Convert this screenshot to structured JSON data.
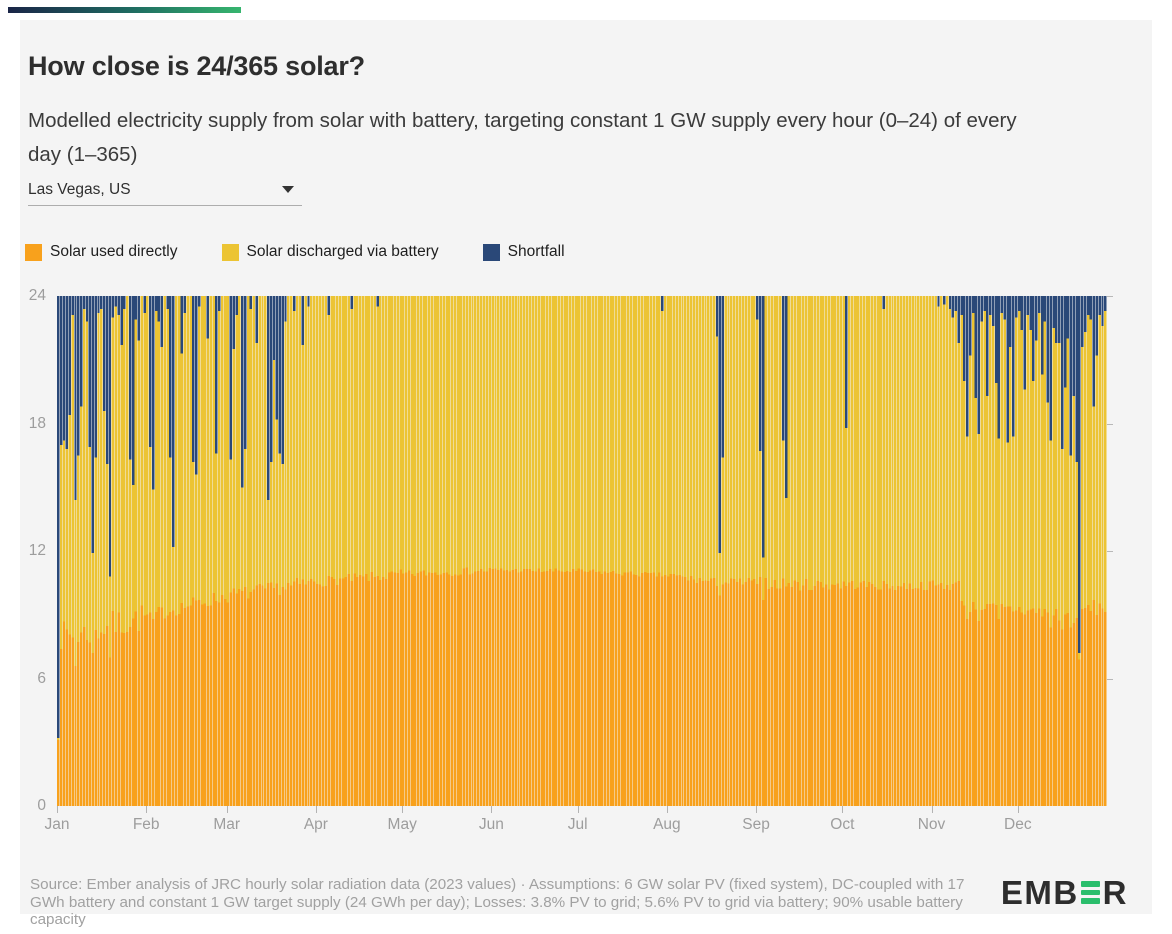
{
  "header": {
    "title": "How close is 24/365 solar?",
    "subtitle": "Modelled electricity supply from solar with battery, targeting constant 1 GW supply every hour (0–24) of every day (1–365)"
  },
  "location_select": {
    "value": "Las Vegas, US"
  },
  "legend": [
    {
      "label": "Solar used directly",
      "color": "#F8A11C"
    },
    {
      "label": "Solar discharged via battery",
      "color": "#ECC433"
    },
    {
      "label": "Shortfall",
      "color": "#2A4878"
    }
  ],
  "footer": {
    "source": "Source: Ember analysis of JRC hourly solar radiation data (2023 values) · Assumptions: 6 GW solar PV (fixed system), DC-coupled with 17 GWh battery and constant 1 GW target supply (24 GWh per day); Losses: 3.8% PV to grid; 5.6% PV to grid via battery; 90% usable battery capacity",
    "logo_pre": "EMB",
    "logo_post": "R"
  },
  "chart_data": {
    "type": "bar",
    "stacked": true,
    "days": 365,
    "target_supply_per_day_gwh": 24,
    "ylim": [
      0,
      24
    ],
    "yticks": [
      0,
      6,
      12,
      18,
      24
    ],
    "x_tick_labels": [
      "Jan",
      "Feb",
      "Mar",
      "Apr",
      "May",
      "Jun",
      "Jul",
      "Aug",
      "Sep",
      "Oct",
      "Nov",
      "Dec"
    ],
    "month_start_days": [
      1,
      32,
      60,
      91,
      121,
      152,
      182,
      213,
      244,
      274,
      305,
      335
    ],
    "series": [
      {
        "name": "Solar used directly",
        "color": "#F8A11C"
      },
      {
        "name": "Solar discharged via battery",
        "color": "#ECC433"
      },
      {
        "name": "Shortfall",
        "color": "#2A4878"
      }
    ],
    "direct_supply_anchors": [
      [
        1,
        8.0
      ],
      [
        10,
        8.1
      ],
      [
        20,
        8.5
      ],
      [
        31,
        8.9
      ],
      [
        45,
        9.4
      ],
      [
        60,
        9.9
      ],
      [
        75,
        10.2
      ],
      [
        91,
        10.55
      ],
      [
        121,
        10.9
      ],
      [
        152,
        11.1
      ],
      [
        182,
        11.05
      ],
      [
        213,
        10.85
      ],
      [
        230,
        10.5
      ],
      [
        244,
        10.55
      ],
      [
        260,
        10.4
      ],
      [
        274,
        10.45
      ],
      [
        290,
        10.35
      ],
      [
        314,
        10.4
      ],
      [
        316,
        9.4
      ],
      [
        335,
        9.25
      ],
      [
        350,
        9.0
      ],
      [
        356,
        8.9
      ],
      [
        358,
        9.3
      ],
      [
        365,
        9.35
      ]
    ],
    "direct_jitter_by_month": [
      0.7,
      0.35,
      0.35,
      0.25,
      0.18,
      0.12,
      0.12,
      0.22,
      0.3,
      0.22,
      0.28,
      0.38
    ],
    "direct_overrides": [
      [
        1,
        3.1
      ],
      [
        7,
        6.6
      ],
      [
        13,
        7.2
      ],
      [
        19,
        7.0
      ],
      [
        34,
        8.8
      ],
      [
        231,
        9.9
      ],
      [
        246,
        9.7
      ],
      [
        317,
        8.8
      ],
      [
        321,
        8.7
      ],
      [
        328,
        8.8
      ],
      [
        346,
        8.4
      ],
      [
        350,
        8.3
      ],
      [
        353,
        8.4
      ],
      [
        356,
        6.9
      ]
    ],
    "shortfall_days": [
      [
        1,
        20.8
      ],
      [
        2,
        7.0
      ],
      [
        3,
        6.8
      ],
      [
        4,
        7.2
      ],
      [
        5,
        5.6
      ],
      [
        6,
        0.9
      ],
      [
        7,
        9.6
      ],
      [
        8,
        7.5
      ],
      [
        9,
        5.2
      ],
      [
        10,
        0.6
      ],
      [
        11,
        1.2
      ],
      [
        12,
        7.1
      ],
      [
        13,
        12.1
      ],
      [
        14,
        7.6
      ],
      [
        15,
        0.8
      ],
      [
        16,
        0.6
      ],
      [
        17,
        5.4
      ],
      [
        18,
        7.9
      ],
      [
        19,
        13.2
      ],
      [
        20,
        1.0
      ],
      [
        21,
        0.5
      ],
      [
        22,
        0.9
      ],
      [
        23,
        2.3
      ],
      [
        24,
        0.6
      ],
      [
        26,
        7.7
      ],
      [
        27,
        8.9
      ],
      [
        28,
        1.1
      ],
      [
        29,
        2.1
      ],
      [
        31,
        0.8
      ],
      [
        33,
        7.1
      ],
      [
        34,
        9.1
      ],
      [
        35,
        0.7
      ],
      [
        36,
        1.2
      ],
      [
        37,
        2.4
      ],
      [
        39,
        0.6
      ],
      [
        40,
        7.6
      ],
      [
        41,
        11.8
      ],
      [
        44,
        2.7
      ],
      [
        45,
        0.8
      ],
      [
        48,
        7.8
      ],
      [
        49,
        8.4
      ],
      [
        50,
        0.5
      ],
      [
        53,
        2.0
      ],
      [
        56,
        7.4
      ],
      [
        57,
        0.7
      ],
      [
        61,
        7.7
      ],
      [
        62,
        2.5
      ],
      [
        63,
        0.9
      ],
      [
        65,
        9.0
      ],
      [
        66,
        7.2
      ],
      [
        68,
        0.6
      ],
      [
        70,
        2.2
      ],
      [
        74,
        9.6
      ],
      [
        75,
        7.8
      ],
      [
        76,
        3.0
      ],
      [
        77,
        5.8
      ],
      [
        78,
        7.4
      ],
      [
        79,
        7.9
      ],
      [
        80,
        1.2
      ],
      [
        83,
        0.7
      ],
      [
        86,
        2.3
      ],
      [
        88,
        0.5
      ],
      [
        95,
        0.9
      ],
      [
        103,
        0.6
      ],
      [
        112,
        0.5
      ],
      [
        211,
        0.7
      ],
      [
        230,
        1.9
      ],
      [
        231,
        12.1
      ],
      [
        232,
        7.6
      ],
      [
        244,
        1.1
      ],
      [
        245,
        7.3
      ],
      [
        246,
        12.3
      ],
      [
        253,
        6.8
      ],
      [
        254,
        9.5
      ],
      [
        275,
        6.2
      ],
      [
        288,
        0.6
      ],
      [
        307,
        0.5
      ],
      [
        309,
        0.4
      ],
      [
        311,
        0.6
      ],
      [
        312,
        1.0
      ],
      [
        313,
        0.7
      ],
      [
        314,
        2.2
      ],
      [
        315,
        0.9
      ],
      [
        316,
        4.0
      ],
      [
        317,
        6.6
      ],
      [
        318,
        2.8
      ],
      [
        319,
        0.8
      ],
      [
        320,
        4.8
      ],
      [
        321,
        6.5
      ],
      [
        322,
        1.2
      ],
      [
        323,
        0.7
      ],
      [
        324,
        4.7
      ],
      [
        325,
        0.9
      ],
      [
        326,
        1.4
      ],
      [
        327,
        4.1
      ],
      [
        328,
        6.7
      ],
      [
        329,
        0.8
      ],
      [
        330,
        1.1
      ],
      [
        331,
        6.9
      ],
      [
        332,
        2.4
      ],
      [
        333,
        6.6
      ],
      [
        334,
        1.0
      ],
      [
        335,
        0.7
      ],
      [
        336,
        1.6
      ],
      [
        337,
        4.4
      ],
      [
        338,
        0.9
      ],
      [
        339,
        1.6
      ],
      [
        340,
        4.0
      ],
      [
        341,
        2.1
      ],
      [
        342,
        0.8
      ],
      [
        343,
        3.7
      ],
      [
        344,
        1.2
      ],
      [
        345,
        5.0
      ],
      [
        346,
        6.8
      ],
      [
        347,
        1.5
      ],
      [
        348,
        2.2
      ],
      [
        349,
        2.2
      ],
      [
        350,
        7.2
      ],
      [
        351,
        4.3
      ],
      [
        352,
        2.0
      ],
      [
        353,
        7.5
      ],
      [
        354,
        4.7
      ],
      [
        355,
        7.8
      ],
      [
        356,
        16.8
      ],
      [
        357,
        2.4
      ],
      [
        358,
        1.7
      ],
      [
        359,
        0.9
      ],
      [
        360,
        1.1
      ],
      [
        361,
        5.2
      ],
      [
        362,
        2.8
      ],
      [
        363,
        0.9
      ],
      [
        364,
        1.4
      ],
      [
        365,
        0.7
      ]
    ]
  }
}
